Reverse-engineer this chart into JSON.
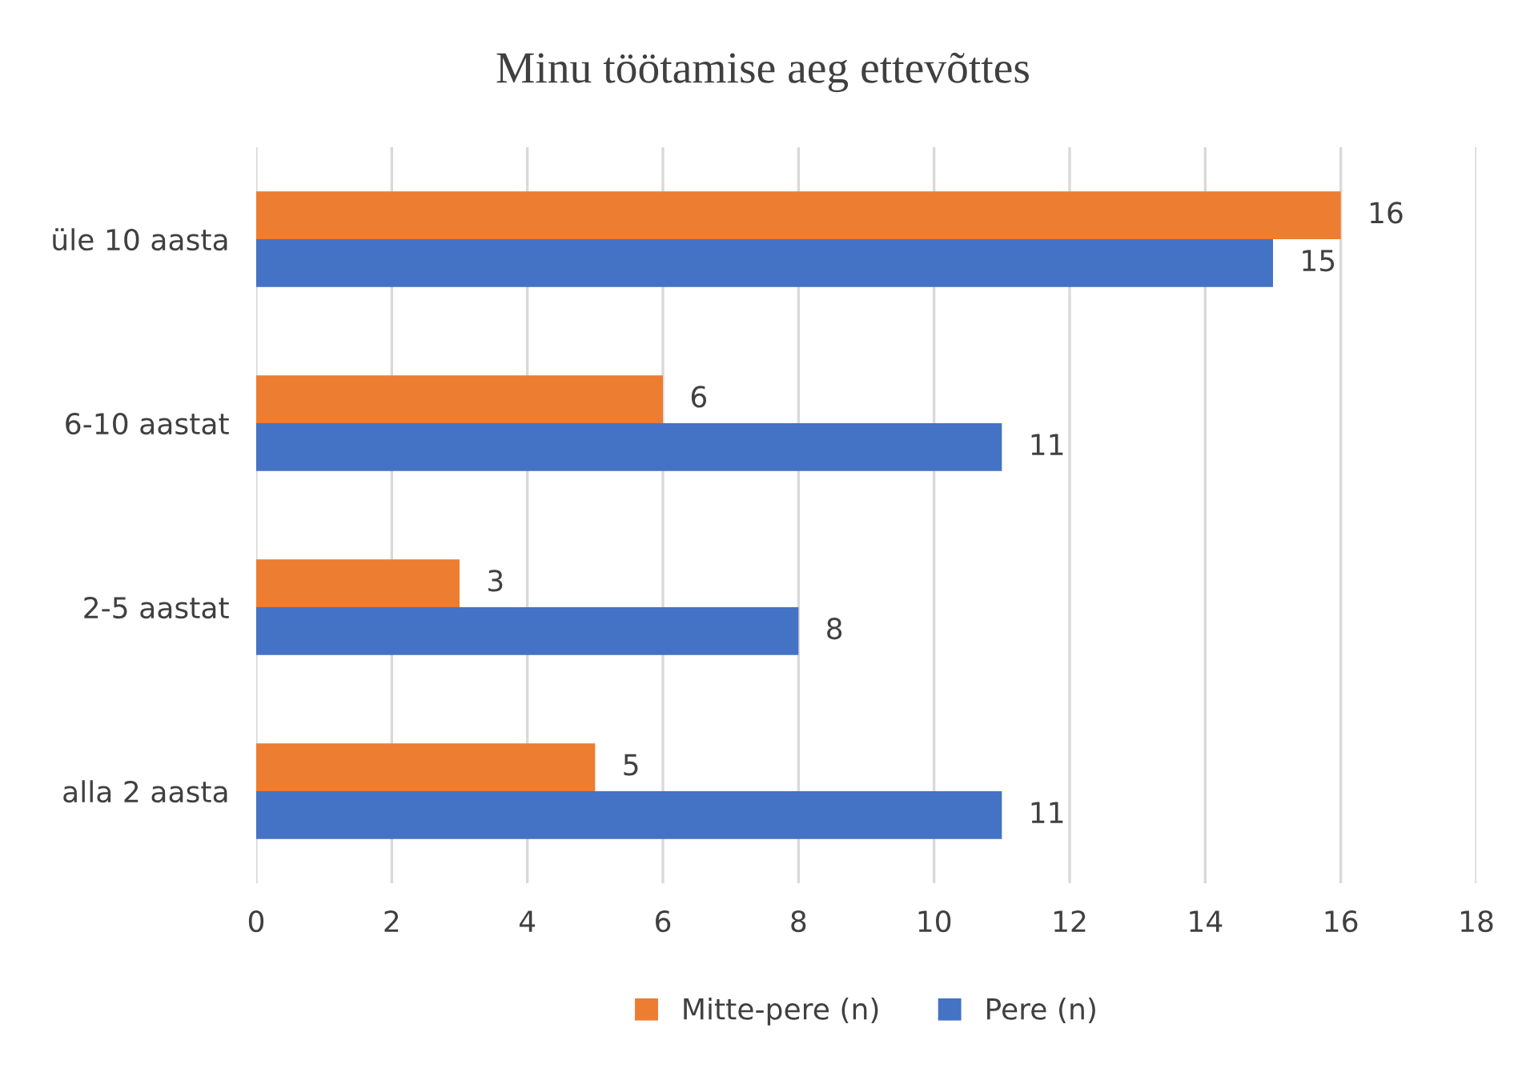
{
  "chart_data": {
    "type": "bar",
    "orientation": "horizontal",
    "title": "Minu töötamise aeg ettevõttes",
    "categories": [
      "üle 10 aasta",
      "6-10 aastat",
      "2-5 aastat",
      "alla 2 aasta"
    ],
    "series": [
      {
        "name": "Mitte-pere (n)",
        "color": "#ed7d31",
        "values": [
          16,
          6,
          3,
          5
        ]
      },
      {
        "name": "Pere (n)",
        "color": "#4472c4",
        "values": [
          15,
          11,
          8,
          11
        ]
      }
    ],
    "xlim": [
      0,
      18
    ],
    "xticks": [
      0,
      2,
      4,
      6,
      8,
      10,
      12,
      14,
      16,
      18
    ],
    "grid": "x",
    "legend": "bottom",
    "data_labels": true
  }
}
